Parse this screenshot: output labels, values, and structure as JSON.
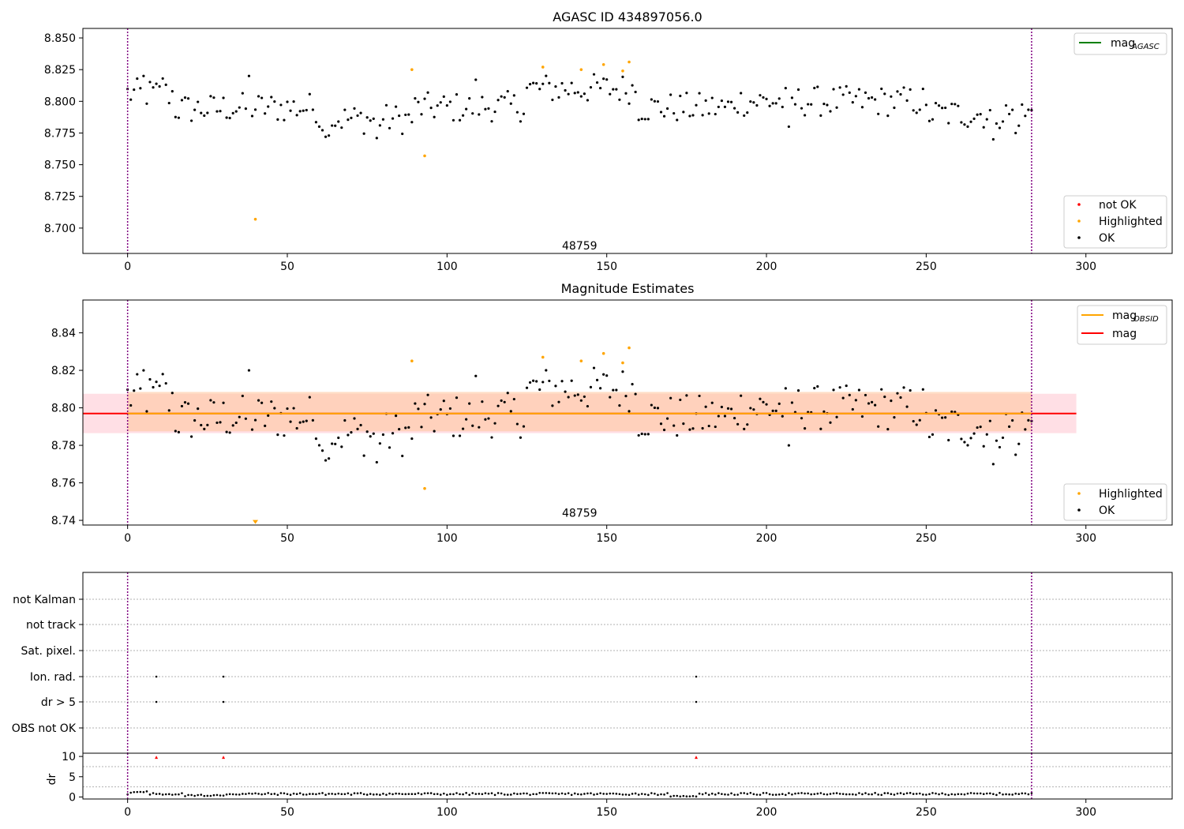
{
  "colors": {
    "ok": "#000000",
    "highlighted": "#ffa500",
    "not_ok": "#ff0000",
    "mag_agasc": "#008000",
    "mag_obsid": "#ffa500",
    "mag": "#ff0000",
    "vline": "#800080",
    "band_mag": "#ffc0cb",
    "band_obsid": "#ffc8a0",
    "grid": "#b0b0b0"
  },
  "chart_data": [
    {
      "id": "agasc",
      "type": "scatter",
      "title": "AGASC ID 434897056.0",
      "xlim": [
        -14,
        327
      ],
      "ylim": [
        8.68,
        8.8575
      ],
      "xticks": [
        0,
        50,
        100,
        150,
        200,
        250,
        300
      ],
      "yticks": [
        8.7,
        8.725,
        8.75,
        8.775,
        8.8,
        8.825,
        8.85
      ],
      "ytick_labels": [
        "8.700",
        "8.725",
        "8.750",
        "8.775",
        "8.800",
        "8.825",
        "8.850"
      ],
      "vlines": [
        0,
        283
      ],
      "annotation": {
        "text": "48759",
        "x": 141.5,
        "y": 8.683
      },
      "legend_lines": [
        {
          "label": "mag",
          "sub": "AGASC",
          "color": "#008000"
        }
      ],
      "legend_markers": [
        {
          "label": "not OK",
          "color": "#ff0000"
        },
        {
          "label": "Highlighted",
          "color": "#ffa500"
        },
        {
          "label": "OK",
          "color": "#000000"
        }
      ],
      "highlighted": [
        [
          40,
          8.707
        ],
        [
          89,
          8.825
        ],
        [
          93,
          8.757
        ],
        [
          130,
          8.827
        ],
        [
          142,
          8.825
        ],
        [
          149,
          8.829
        ],
        [
          155,
          8.824
        ],
        [
          157,
          8.831
        ]
      ]
    },
    {
      "id": "estimates",
      "type": "scatter",
      "title": "Magnitude Estimates",
      "xlim": [
        -14,
        327
      ],
      "ylim": [
        8.7375,
        8.8575
      ],
      "xticks": [
        0,
        50,
        100,
        150,
        200,
        250,
        300
      ],
      "yticks": [
        8.74,
        8.76,
        8.78,
        8.8,
        8.82,
        8.84
      ],
      "ytick_labels": [
        "8.74",
        "8.76",
        "8.78",
        "8.80",
        "8.82",
        "8.84"
      ],
      "vlines": [
        0,
        283
      ],
      "annotation": {
        "text": "48759",
        "x": 141.5,
        "y": 8.742
      },
      "mag_line": {
        "value": 8.797,
        "x_range": [
          -14,
          297
        ]
      },
      "mag_band": [
        8.7865,
        8.8075
      ],
      "obsid_band": [
        8.7875,
        8.8085
      ],
      "obsid_range": [
        0,
        283
      ],
      "legend_lines": [
        {
          "label": "mag",
          "sub": "OBSID",
          "color": "#ffa500"
        },
        {
          "label": "mag",
          "sub": "",
          "color": "#ff0000"
        }
      ],
      "legend_markers": [
        {
          "label": "Highlighted",
          "color": "#ffa500"
        },
        {
          "label": "OK",
          "color": "#000000"
        }
      ],
      "highlighted": [
        [
          89,
          8.825
        ],
        [
          93,
          8.757
        ],
        [
          130,
          8.827
        ],
        [
          142,
          8.825
        ],
        [
          149,
          8.829
        ],
        [
          155,
          8.824
        ],
        [
          157,
          8.832
        ]
      ],
      "down_marker": [
        40,
        8.7385
      ]
    },
    {
      "id": "flags",
      "type": "scatter",
      "xlim": [
        -14,
        327
      ],
      "categories": [
        "OBS not OK",
        "dr > 5",
        "Ion. rad.",
        "Sat. pixel.",
        "not track",
        "not Kalman"
      ],
      "vlines": [
        0,
        283
      ],
      "points": [
        [
          9,
          "dr > 5"
        ],
        [
          30,
          "dr > 5"
        ],
        [
          178,
          "dr > 5"
        ],
        [
          9,
          "Ion. rad."
        ],
        [
          30,
          "Ion. rad."
        ],
        [
          178,
          "Ion. rad."
        ]
      ]
    },
    {
      "id": "dr",
      "type": "scatter",
      "xlim": [
        -14,
        327
      ],
      "ylim": [
        -0.5,
        10.8
      ],
      "ylabel": "dr",
      "xticks": [
        0,
        50,
        100,
        150,
        200,
        250,
        300
      ],
      "yticks": [
        0,
        5,
        10
      ],
      "ytick_labels": [
        "0",
        "5",
        "10"
      ],
      "vlines": [
        0,
        283
      ],
      "not_ok": [
        [
          9,
          9.8
        ],
        [
          30,
          9.8
        ],
        [
          178,
          9.8
        ]
      ]
    }
  ]
}
